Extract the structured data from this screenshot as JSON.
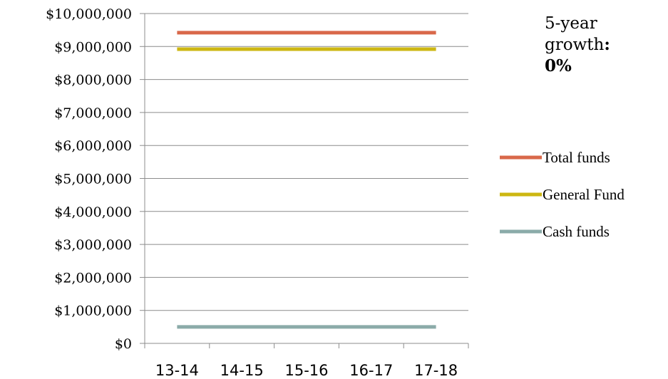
{
  "chart_data": {
    "type": "line",
    "title": "",
    "xlabel": "",
    "ylabel": "",
    "categories": [
      "13-14",
      "14-15",
      "15-16",
      "16-17",
      "17-18"
    ],
    "ylim": [
      0,
      10000000
    ],
    "yticks": [
      0,
      1000000,
      2000000,
      3000000,
      4000000,
      5000000,
      6000000,
      7000000,
      8000000,
      9000000,
      10000000
    ],
    "ytick_labels": [
      "$0",
      "$1,000,000",
      "$2,000,000",
      "$3,000,000",
      "$4,000,000",
      "$5,000,000",
      "$6,000,000",
      "$7,000,000",
      "$8,000,000",
      "$9,000,000",
      "$10,000,000"
    ],
    "grid": true,
    "legend_position": "right",
    "series": [
      {
        "name": "Total funds",
        "color": "#D9684A",
        "values": [
          9420000,
          9420000,
          9420000,
          9420000,
          9420000
        ]
      },
      {
        "name": "General Fund",
        "color": "#CDB712",
        "values": [
          8920000,
          8920000,
          8920000,
          8920000,
          8920000
        ]
      },
      {
        "name": "Cash funds",
        "color": "#8BABA9",
        "values": [
          500000,
          500000,
          500000,
          500000,
          500000
        ]
      }
    ]
  },
  "annotation": {
    "prefix": "5-year",
    "label": "growth",
    "colon": ":",
    "value": "0%"
  }
}
